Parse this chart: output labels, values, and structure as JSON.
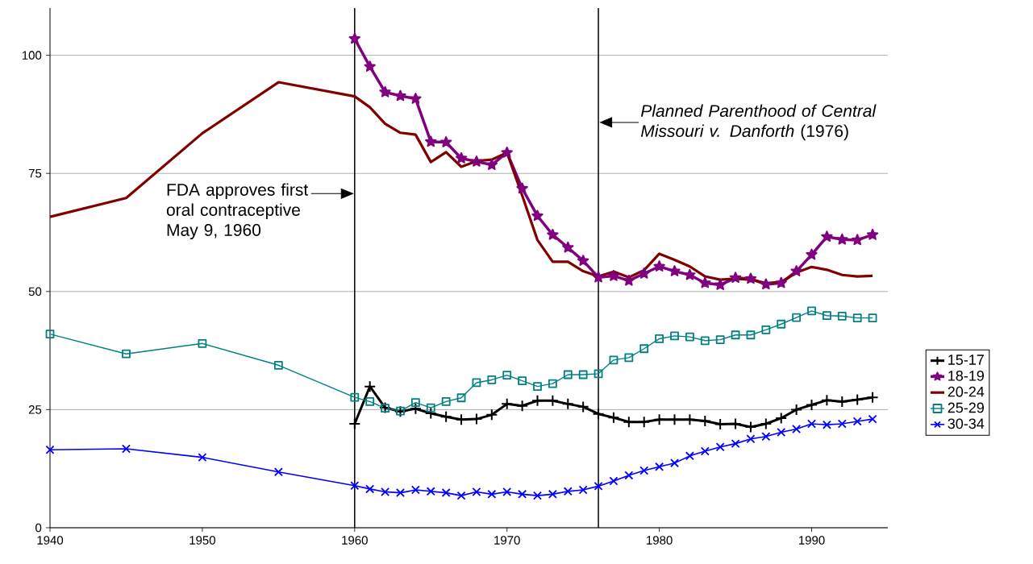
{
  "chart_data": {
    "type": "line",
    "x": [
      1940,
      1945,
      1950,
      1955,
      1960,
      1961,
      1962,
      1963,
      1964,
      1965,
      1966,
      1967,
      1968,
      1969,
      1970,
      1971,
      1972,
      1973,
      1974,
      1975,
      1976,
      1977,
      1978,
      1979,
      1980,
      1981,
      1982,
      1983,
      1984,
      1985,
      1986,
      1987,
      1988,
      1989,
      1990,
      1991,
      1992,
      1993,
      1994
    ],
    "series": [
      {
        "name": "15-17",
        "color": "#000000",
        "marker": "plus",
        "x": [
          1960,
          1961,
          1962,
          1963,
          1964,
          1965,
          1966,
          1967,
          1968,
          1969,
          1970,
          1971,
          1972,
          1973,
          1974,
          1975,
          1976,
          1977,
          1978,
          1979,
          1980,
          1981,
          1982,
          1983,
          1984,
          1985,
          1986,
          1987,
          1988,
          1989,
          1990,
          1991,
          1992,
          1993,
          1994
        ],
        "values": [
          22.0,
          29.9,
          25.4,
          24.6,
          25.2,
          24.2,
          23.5,
          22.9,
          23.0,
          23.9,
          26.2,
          25.8,
          26.9,
          26.9,
          26.2,
          25.6,
          24.1,
          23.3,
          22.4,
          22.4,
          22.9,
          22.9,
          22.9,
          22.6,
          21.9,
          22.0,
          21.3,
          22.0,
          23.2,
          25.0,
          26.0,
          27.0,
          26.7,
          27.1,
          27.6
        ]
      },
      {
        "name": "18-19",
        "color": "#800080",
        "marker": "star",
        "x": [
          1960,
          1961,
          1962,
          1963,
          1964,
          1965,
          1966,
          1967,
          1968,
          1969,
          1970,
          1971,
          1972,
          1973,
          1974,
          1975,
          1976,
          1977,
          1978,
          1979,
          1980,
          1981,
          1982,
          1983,
          1984,
          1985,
          1986,
          1987,
          1988,
          1989,
          1990,
          1991,
          1992,
          1993,
          1994
        ],
        "values": [
          103.5,
          97.6,
          92.2,
          91.4,
          90.8,
          81.7,
          81.6,
          78.2,
          77.5,
          76.8,
          79.4,
          71.8,
          66.0,
          62.0,
          59.3,
          56.5,
          53.0,
          53.3,
          52.3,
          53.8,
          55.3,
          54.3,
          53.5,
          51.8,
          51.4,
          52.9,
          52.7,
          51.5,
          51.8,
          54.3,
          57.8,
          61.6,
          61.0,
          60.9,
          62.0
        ]
      },
      {
        "name": "20-24",
        "color": "#800000",
        "marker": "none",
        "values": [
          65.8,
          69.8,
          83.5,
          94.3,
          91.3,
          89.0,
          85.5,
          83.6,
          83.2,
          77.4,
          79.5,
          76.4,
          77.6,
          77.9,
          79.4,
          70.3,
          60.9,
          56.3,
          56.3,
          54.3,
          53.2,
          54.2,
          53.0,
          54.5,
          58.0,
          56.7,
          55.3,
          53.2,
          52.5,
          52.7,
          52.5,
          51.8,
          52.0,
          54.0,
          55.2,
          54.6,
          53.5,
          53.2,
          53.3
        ]
      },
      {
        "name": "25-29",
        "color": "#008080",
        "marker": "square",
        "values": [
          41.0,
          36.8,
          39.0,
          34.4,
          27.6,
          26.7,
          25.3,
          24.7,
          26.5,
          25.4,
          26.7,
          27.5,
          30.7,
          31.3,
          32.3,
          31.1,
          29.9,
          30.5,
          32.4,
          32.4,
          32.6,
          35.5,
          36.0,
          37.9,
          40.0,
          40.6,
          40.4,
          39.6,
          39.8,
          40.8,
          40.8,
          41.9,
          43.1,
          44.5,
          45.9,
          44.9,
          44.8,
          44.4,
          44.4
        ]
      },
      {
        "name": "30-34",
        "color": "#0000ff",
        "marker": "cross",
        "values": [
          16.5,
          16.7,
          14.9,
          11.8,
          8.9,
          8.2,
          7.6,
          7.4,
          8.0,
          7.7,
          7.4,
          6.8,
          7.6,
          7.1,
          7.6,
          7.1,
          6.8,
          7.1,
          7.7,
          8.0,
          8.8,
          9.9,
          11.1,
          12.1,
          12.9,
          13.7,
          15.2,
          16.2,
          17.1,
          17.8,
          18.8,
          19.3,
          20.2,
          20.9,
          22.0,
          21.8,
          22.0,
          22.5,
          23.0
        ]
      }
    ],
    "xlim": [
      1940,
      1995
    ],
    "ylim": [
      0,
      110
    ],
    "xticks": [
      1940,
      1950,
      1960,
      1970,
      1980,
      1990
    ],
    "yticks": [
      0,
      25,
      50,
      75,
      100
    ],
    "grid": "y",
    "legend": "right",
    "ref_lines": [
      {
        "axis": "x",
        "value": 1960,
        "label": "FDA approves first oral contraceptive May 9, 1960",
        "color": "#000000"
      },
      {
        "axis": "x",
        "value": 1976,
        "label": "*Planned Parenthood of Central Missouri v. Danforth* (1976)",
        "color": "#000000"
      }
    ]
  }
}
